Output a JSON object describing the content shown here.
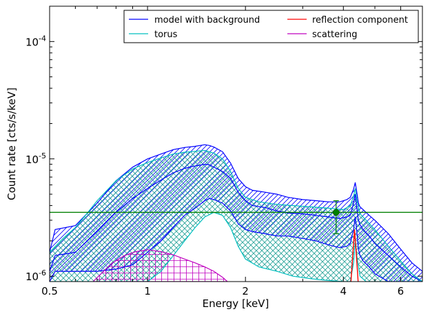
{
  "chart_data": {
    "type": "line",
    "xlabel": "Energy [keV]",
    "ylabel": "Count rate [cts/s/keV]",
    "x_scale": "log",
    "y_scale": "log",
    "xlim": [
      0.5,
      7.0
    ],
    "ylim": [
      9e-07,
      0.0002
    ],
    "x_ticks": [
      {
        "value": 0.5,
        "label": "0.5"
      },
      {
        "value": 1,
        "label": "1"
      },
      {
        "value": 2,
        "label": "2"
      },
      {
        "value": 4,
        "label": "4"
      },
      {
        "value": 6,
        "label": "6"
      }
    ],
    "y_ticks": [
      {
        "value": 1e-06,
        "base": "10",
        "exp": "-6"
      },
      {
        "value": 1e-05,
        "base": "10",
        "exp": "-5"
      },
      {
        "value": 0.0001,
        "base": "10",
        "exp": "-4"
      }
    ],
    "legend": {
      "placement": "top-right",
      "columns": 2,
      "entries": [
        {
          "label": "model with background",
          "color": "#0000ff"
        },
        {
          "label": "reflection component",
          "color": "#ff0000"
        },
        {
          "label": "torus",
          "color": "#00bfbf"
        },
        {
          "label": "scattering",
          "color": "#bf00bf"
        }
      ]
    },
    "series": [
      {
        "key": "model",
        "color": "#0000ff",
        "hatch": "diagonal",
        "x": [
          0.5,
          0.52,
          0.6,
          0.7,
          0.8,
          0.9,
          1.0,
          1.1,
          1.2,
          1.3,
          1.4,
          1.5,
          1.55,
          1.6,
          1.7,
          1.8,
          1.9,
          2.0,
          2.1,
          2.3,
          2.5,
          2.7,
          3.0,
          3.3,
          3.6,
          3.9,
          4.1,
          4.2,
          4.3,
          4.35,
          4.4,
          4.45,
          4.5,
          4.6,
          4.8,
          5.0,
          5.5,
          6.0,
          6.5,
          7.0
        ],
        "upper": [
          1.6e-06,
          2.5e-06,
          2.7e-06,
          4.2e-06,
          6.5e-06,
          8.5e-06,
          1e-05,
          1.1e-05,
          1.2e-05,
          1.25e-05,
          1.28e-05,
          1.32e-05,
          1.3e-05,
          1.26e-05,
          1.15e-05,
          9.2e-06,
          6.8e-06,
          5.8e-06,
          5.4e-06,
          5.2e-06,
          5e-06,
          4.7e-06,
          4.5e-06,
          4.4e-06,
          4.3e-06,
          4.3e-06,
          4.5e-06,
          4.7e-06,
          5.5e-06,
          6.3e-06,
          5.2e-06,
          4.2e-06,
          3.9e-06,
          3.7e-06,
          3.3e-06,
          3e-06,
          2.3e-06,
          1.7e-06,
          1.3e-06,
          1.1e-06
        ],
        "center": [
          1.1e-06,
          1.5e-06,
          1.6e-06,
          2.4e-06,
          3.5e-06,
          4.6e-06,
          5.6e-06,
          6.6e-06,
          7.6e-06,
          8.3e-06,
          8.7e-06,
          9e-06,
          8.9e-06,
          8.5e-06,
          7.8e-06,
          6.8e-06,
          5.2e-06,
          4.4e-06,
          4e-06,
          3.85e-06,
          3.6e-06,
          3.45e-06,
          3.4e-06,
          3.3e-06,
          3.2e-06,
          3.1e-06,
          3.2e-06,
          3.3e-06,
          4.2e-06,
          5e-06,
          3.8e-06,
          3e-06,
          2.75e-06,
          2.5e-06,
          2.2e-06,
          1.9e-06,
          1.5e-06,
          1.2e-06,
          1e-06,
          9e-07
        ],
        "lower": [
          9e-07,
          1.1e-06,
          1.1e-06,
          1.1e-06,
          1.15e-06,
          1.25e-06,
          1.6e-06,
          2e-06,
          2.6e-06,
          3.3e-06,
          3.8e-06,
          4.4e-06,
          4.6e-06,
          4.5e-06,
          4.2e-06,
          3.6e-06,
          2.8e-06,
          2.5e-06,
          2.4e-06,
          2.3e-06,
          2.2e-06,
          2.2e-06,
          2.1e-06,
          2e-06,
          1.85e-06,
          1.75e-06,
          1.8e-06,
          1.9e-06,
          2.5e-06,
          3.2e-06,
          2.4e-06,
          1.7e-06,
          1.5e-06,
          1.35e-06,
          1.2e-06,
          1.05e-06,
          9e-07,
          9e-07,
          9e-07,
          9e-07
        ]
      },
      {
        "key": "torus",
        "color": "#00bfbf",
        "hatch": "cross",
        "x": [
          0.5,
          0.55,
          0.6,
          0.65,
          0.7,
          0.8,
          0.9,
          1.0,
          1.1,
          1.2,
          1.3,
          1.4,
          1.5,
          1.6,
          1.7,
          1.8,
          1.9,
          2.0,
          2.2,
          2.5,
          2.8,
          3.2,
          3.6,
          4.0,
          4.2,
          4.3,
          4.35,
          4.4,
          4.5,
          4.7,
          5.0,
          5.5,
          6.0,
          6.5,
          7.0
        ],
        "upper": [
          1.6e-06,
          2.1e-06,
          2.6e-06,
          3.4e-06,
          4.4e-06,
          6.5e-06,
          8.2e-06,
          9.3e-06,
          1.02e-05,
          1.1e-05,
          1.14e-05,
          1.16e-05,
          1.18e-05,
          1.12e-05,
          1e-05,
          7.8e-06,
          5.6e-06,
          4.7e-06,
          4.3e-06,
          4.1e-06,
          4e-06,
          3.9e-06,
          3.8e-06,
          3.7e-06,
          4e-06,
          4.8e-06,
          5.6e-06,
          4.5e-06,
          3.4e-06,
          3e-06,
          2.5e-06,
          1.8e-06,
          1.35e-06,
          1.05e-06,
          9e-07
        ],
        "lower": [
          9e-07,
          9e-07,
          9e-07,
          9e-07,
          9e-07,
          9e-07,
          9e-07,
          9e-07,
          1.1e-06,
          1.5e-06,
          2e-06,
          2.6e-06,
          3.2e-06,
          3.5e-06,
          3.3e-06,
          2.6e-06,
          1.8e-06,
          1.4e-06,
          1.2e-06,
          1.1e-06,
          1e-06,
          9.5e-07,
          9.2e-07,
          9e-07,
          9e-07,
          1.3e-06,
          2e-06,
          1.5e-06,
          1e-06,
          9e-07,
          9e-07,
          9e-07,
          9e-07,
          9e-07,
          9e-07
        ]
      },
      {
        "key": "scattering",
        "color": "#bf00bf",
        "hatch": "grid",
        "x": [
          0.68,
          0.72,
          0.78,
          0.85,
          0.92,
          1.0,
          1.1,
          1.2,
          1.3,
          1.4,
          1.5,
          1.6,
          1.7,
          1.76
        ],
        "upper": [
          9e-07,
          1.05e-06,
          1.3e-06,
          1.5e-06,
          1.62e-06,
          1.68e-06,
          1.62e-06,
          1.52e-06,
          1.4e-06,
          1.3e-06,
          1.2e-06,
          1.1e-06,
          9.8e-07,
          9e-07
        ],
        "lower": [
          9e-07,
          9e-07,
          9e-07,
          9e-07,
          9e-07,
          9e-07,
          9e-07,
          9e-07,
          9e-07,
          9e-07,
          9e-07,
          9e-07,
          9e-07,
          9e-07
        ]
      },
      {
        "key": "reflection",
        "color": "#ff0000",
        "x": [
          4.22,
          4.28,
          4.33,
          4.38,
          4.44
        ],
        "y": [
          9e-07,
          1.6e-06,
          2.5e-06,
          1.6e-06,
          9e-07
        ]
      }
    ],
    "background_level": {
      "y": 3.5e-06,
      "color": "#008000"
    },
    "data_point": {
      "x": 3.8,
      "y": 3.5e-06,
      "yerr_low": 2.3e-06,
      "yerr_high": 4.4e-06,
      "color": "#008000"
    }
  }
}
